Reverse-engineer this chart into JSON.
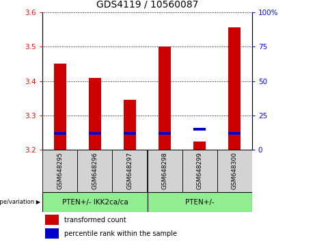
{
  "title": "GDS4119 / 10560087",
  "samples": [
    "GSM648295",
    "GSM648296",
    "GSM648297",
    "GSM648298",
    "GSM648299",
    "GSM648300"
  ],
  "red_values": [
    3.45,
    3.41,
    3.345,
    3.5,
    3.225,
    3.555
  ],
  "blue_values_pct": [
    12,
    12,
    12,
    12,
    15,
    12
  ],
  "ymin": 3.2,
  "ymax": 3.6,
  "yticks_left": [
    3.2,
    3.3,
    3.4,
    3.5,
    3.6
  ],
  "yticks_right": [
    0,
    25,
    50,
    75,
    100
  ],
  "ytick_right_labels": [
    "0",
    "25",
    "50",
    "75",
    "100%"
  ],
  "bar_width": 0.35,
  "red_color": "#cc0000",
  "blue_color": "#0000cc",
  "legend_red_label": "transformed count",
  "legend_blue_label": "percentile rank within the sample",
  "group1_label": "PTEN+/- IKK2ca/ca",
  "group2_label": "PTEN+/-",
  "group_color": "#90ee90",
  "xlabel_label": "genotype/variation",
  "title_fontsize": 10,
  "tick_fontsize": 7.5,
  "sample_fontsize": 6.5,
  "group_fontsize": 7.5,
  "legend_fontsize": 7
}
